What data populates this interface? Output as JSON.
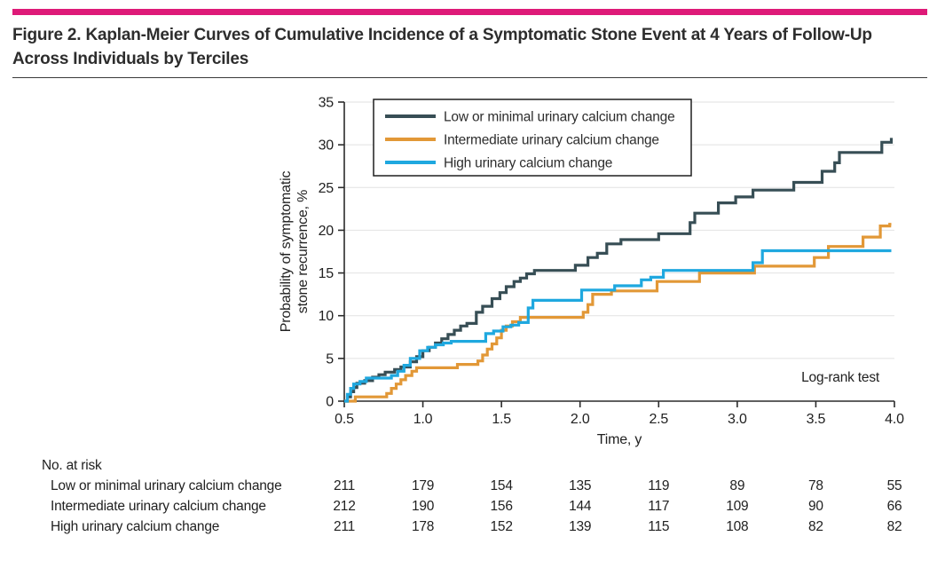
{
  "figure": {
    "title": "Figure 2. Kaplan-Meier Curves of Cumulative Incidence of a Symptomatic Stone Event at 4 Years of Follow-Up Across Individuals by Terciles"
  },
  "colors": {
    "accent_bar": "#DE1A78",
    "axis": "#2b2b2b",
    "grid": "#e2e2e2",
    "text": "#212121",
    "legend_border": "#1f1f1f"
  },
  "chart_data": {
    "type": "line",
    "subtype": "kaplan-meier-step",
    "title": "",
    "xlabel": "Time, y",
    "ylabel_lines": [
      "Probability of symptomatic",
      "stone recurrence, %"
    ],
    "xlim": [
      0.5,
      4.0
    ],
    "ylim": [
      0,
      35
    ],
    "x_tick_values": [
      0.5,
      1.0,
      1.5,
      2.0,
      2.5,
      3.0,
      3.5,
      4.0
    ],
    "x_tick_labels": [
      "0.5",
      "1.0",
      "1.5",
      "2.0",
      "2.5",
      "3.0",
      "3.5",
      "4.0"
    ],
    "y_tick_values": [
      0,
      5,
      10,
      15,
      20,
      25,
      30,
      35
    ],
    "grid": "horizontal",
    "legend_position": "top-left-inside",
    "annotation": "Log-rank test",
    "series": [
      {
        "id": "low",
        "name": "Low or minimal urinary calcium change",
        "color": "#374E55",
        "points": [
          [
            0.5,
            0
          ],
          [
            0.52,
            0.5
          ],
          [
            0.54,
            1.1
          ],
          [
            0.56,
            1.6
          ],
          [
            0.58,
            2.1
          ],
          [
            0.63,
            2.4
          ],
          [
            0.68,
            2.8
          ],
          [
            0.72,
            3.1
          ],
          [
            0.76,
            3.4
          ],
          [
            0.82,
            3.7
          ],
          [
            0.86,
            4.0
          ],
          [
            0.92,
            4.6
          ],
          [
            0.96,
            5.2
          ],
          [
            1.0,
            5.9
          ],
          [
            1.04,
            6.3
          ],
          [
            1.08,
            6.8
          ],
          [
            1.12,
            7.3
          ],
          [
            1.16,
            7.8
          ],
          [
            1.2,
            8.3
          ],
          [
            1.24,
            8.8
          ],
          [
            1.28,
            9.1
          ],
          [
            1.34,
            10.4
          ],
          [
            1.38,
            11.1
          ],
          [
            1.44,
            12.0
          ],
          [
            1.49,
            12.7
          ],
          [
            1.53,
            13.4
          ],
          [
            1.58,
            14.0
          ],
          [
            1.62,
            14.4
          ],
          [
            1.66,
            14.9
          ],
          [
            1.71,
            15.3
          ],
          [
            1.97,
            15.9
          ],
          [
            2.05,
            16.8
          ],
          [
            2.11,
            17.3
          ],
          [
            2.17,
            18.4
          ],
          [
            2.26,
            18.9
          ],
          [
            2.5,
            19.6
          ],
          [
            2.7,
            20.9
          ],
          [
            2.73,
            22.0
          ],
          [
            2.88,
            23.2
          ],
          [
            2.99,
            23.9
          ],
          [
            3.1,
            24.7
          ],
          [
            3.36,
            25.6
          ],
          [
            3.54,
            26.9
          ],
          [
            3.62,
            27.9
          ],
          [
            3.65,
            29.1
          ],
          [
            3.92,
            30.3
          ],
          [
            3.98,
            30.8
          ]
        ]
      },
      {
        "id": "intermediate",
        "name": "Intermediate urinary calcium change",
        "color": "#E29837",
        "points": [
          [
            0.5,
            0
          ],
          [
            0.57,
            0.5
          ],
          [
            0.77,
            0.9
          ],
          [
            0.8,
            1.5
          ],
          [
            0.83,
            2.0
          ],
          [
            0.86,
            2.5
          ],
          [
            0.89,
            3.0
          ],
          [
            0.93,
            3.5
          ],
          [
            0.96,
            3.9
          ],
          [
            1.22,
            4.3
          ],
          [
            1.35,
            4.7
          ],
          [
            1.38,
            5.4
          ],
          [
            1.41,
            6.1
          ],
          [
            1.44,
            6.7
          ],
          [
            1.47,
            7.4
          ],
          [
            1.5,
            8.3
          ],
          [
            1.53,
            8.8
          ],
          [
            1.57,
            9.3
          ],
          [
            1.62,
            9.8
          ],
          [
            2.02,
            10.4
          ],
          [
            2.05,
            11.3
          ],
          [
            2.08,
            12.5
          ],
          [
            2.2,
            12.9
          ],
          [
            2.49,
            14.0
          ],
          [
            2.76,
            15.0
          ],
          [
            3.11,
            15.8
          ],
          [
            3.49,
            16.8
          ],
          [
            3.58,
            18.1
          ],
          [
            3.8,
            19.2
          ],
          [
            3.91,
            20.5
          ],
          [
            3.97,
            20.7
          ]
        ]
      },
      {
        "id": "high",
        "name": "High urinary calcium change",
        "color": "#1FA8DF",
        "points": [
          [
            0.5,
            0
          ],
          [
            0.52,
            0.8
          ],
          [
            0.54,
            1.5
          ],
          [
            0.56,
            2.0
          ],
          [
            0.6,
            2.3
          ],
          [
            0.64,
            2.7
          ],
          [
            0.8,
            3.0
          ],
          [
            0.84,
            3.5
          ],
          [
            0.88,
            4.2
          ],
          [
            0.92,
            5.0
          ],
          [
            0.98,
            5.9
          ],
          [
            1.03,
            6.3
          ],
          [
            1.08,
            6.6
          ],
          [
            1.13,
            6.8
          ],
          [
            1.18,
            7.0
          ],
          [
            1.4,
            7.9
          ],
          [
            1.45,
            8.2
          ],
          [
            1.51,
            8.7
          ],
          [
            1.56,
            8.9
          ],
          [
            1.61,
            9.2
          ],
          [
            1.67,
            10.9
          ],
          [
            1.7,
            11.8
          ],
          [
            2.01,
            13.0
          ],
          [
            2.22,
            13.5
          ],
          [
            2.39,
            14.2
          ],
          [
            2.45,
            14.5
          ],
          [
            2.53,
            15.3
          ],
          [
            3.1,
            16.2
          ],
          [
            3.16,
            17.6
          ]
        ]
      }
    ],
    "risk_table": {
      "title": "No. at risk",
      "time_points": [
        0.5,
        1.0,
        1.5,
        2.0,
        2.5,
        3.0,
        3.5,
        4.0
      ],
      "rows": [
        {
          "label": "Low or minimal urinary calcium change",
          "values": [
            "211",
            "179",
            "154",
            "135",
            "119",
            "89",
            "78",
            "55"
          ]
        },
        {
          "label": "Intermediate urinary calcium change",
          "values": [
            "212",
            "190",
            "156",
            "144",
            "117",
            "109",
            "90",
            "66"
          ]
        },
        {
          "label": "High urinary calcium change",
          "values": [
            "211",
            "178",
            "152",
            "139",
            "115",
            "108",
            "82",
            "82"
          ]
        }
      ]
    }
  }
}
